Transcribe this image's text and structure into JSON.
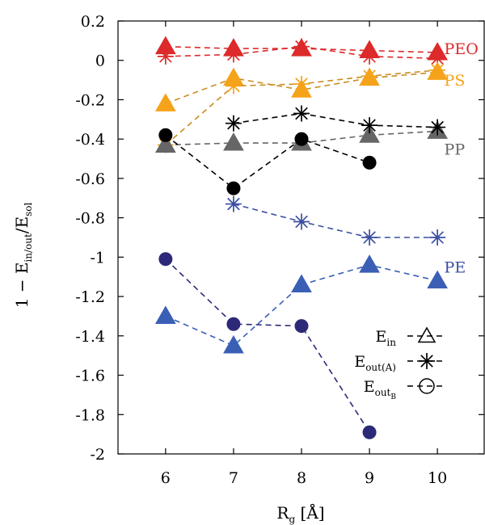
{
  "chart_data": {
    "type": "line",
    "xlabel": "R_g [Å]",
    "xlabel_main": "R",
    "xlabel_sub": "g",
    "xlabel_unit": " [Å]",
    "ylabel": "1 − E_in/out/E_sol",
    "ylabel_parts": {
      "lead": "1 − E",
      "sub1": "in/out",
      "mid": "/E",
      "sub2": "sol"
    },
    "xlim": [
      5.3,
      10.7
    ],
    "ylim": [
      -2.0,
      0.2
    ],
    "xticks": [
      6,
      7,
      8,
      9,
      10
    ],
    "yticks": [
      0.2,
      0,
      -0.2,
      -0.4,
      -0.6,
      -0.8,
      -1,
      -1.2,
      -1.4,
      -1.6,
      -1.8,
      -2
    ],
    "ytick_labels": [
      "0.2",
      "0",
      "-0.2",
      "-0.4",
      "-0.6",
      "-0.8",
      "-1",
      "-1.2",
      "-1.4",
      "-1.6",
      "-1.8",
      "-2"
    ],
    "grid": false,
    "legend_position": "bottom-right",
    "legend": [
      {
        "marker": "triangle",
        "main": "E",
        "sub": "in",
        "subsub": ""
      },
      {
        "marker": "asterisk",
        "main": "E",
        "sub": "out(A)",
        "subsub": ""
      },
      {
        "marker": "circle",
        "main": "E",
        "sub": "out",
        "subsub": "B"
      }
    ],
    "groups": [
      {
        "label": "PEO",
        "color": "#dd2a2a",
        "series": [
          {
            "marker": "triangle",
            "x": [
              6,
              7,
              8,
              9,
              10
            ],
            "y": [
              0.07,
              0.06,
              0.06,
              0.05,
              0.04
            ]
          },
          {
            "marker": "asterisk",
            "x": [
              6,
              7,
              8,
              9,
              10
            ],
            "y": [
              0.02,
              0.03,
              0.07,
              0.02,
              0.01
            ]
          }
        ]
      },
      {
        "label": "PS",
        "color": "#f5a31a",
        "line_color": "#c98e22",
        "series": [
          {
            "marker": "triangle",
            "x": [
              6,
              7,
              8,
              9,
              10
            ],
            "y": [
              -0.22,
              -0.09,
              -0.15,
              -0.09,
              -0.06
            ]
          },
          {
            "marker": "asterisk",
            "x": [
              6,
              7,
              8,
              9,
              10
            ],
            "y": [
              -0.43,
              -0.13,
              -0.12,
              -0.08,
              -0.05
            ]
          }
        ]
      },
      {
        "label": "PP",
        "color": "#000000",
        "label_color": "#666666",
        "series": [
          {
            "marker": "triangle",
            "color": "#666666",
            "x": [
              6,
              7,
              8,
              9,
              10
            ],
            "y": [
              -0.43,
              -0.42,
              -0.42,
              -0.38,
              -0.36
            ]
          },
          {
            "marker": "asterisk",
            "x": [
              7,
              8,
              9,
              10
            ],
            "y": [
              -0.32,
              -0.27,
              -0.33,
              -0.34
            ]
          },
          {
            "marker": "circle",
            "x": [
              6,
              7,
              8,
              9
            ],
            "y": [
              -0.38,
              -0.65,
              -0.4,
              -0.52
            ]
          }
        ]
      },
      {
        "label": "PE",
        "color": "#2e4a9e",
        "series": [
          {
            "marker": "asterisk",
            "color": "#3a4ea0",
            "x": [
              7,
              8,
              9,
              10
            ],
            "y": [
              -0.73,
              -0.82,
              -0.9,
              -0.9
            ]
          },
          {
            "marker": "triangle",
            "color": "#3a5fb5",
            "x": [
              6,
              7,
              8,
              9,
              10
            ],
            "y": [
              -1.3,
              -1.45,
              -1.14,
              -1.04,
              -1.12
            ]
          },
          {
            "marker": "circle",
            "color": "#2c2a78",
            "x": [
              6,
              7,
              8,
              9
            ],
            "y": [
              -1.01,
              -1.34,
              -1.35,
              -1.89
            ]
          }
        ]
      }
    ],
    "series_labels": [
      {
        "text": "PEO",
        "color": "#dd2a2a",
        "x": 10.1,
        "y": 0.06
      },
      {
        "text": "PS",
        "color": "#f5a31a",
        "x": 10.1,
        "y": -0.1
      },
      {
        "text": "PP",
        "color": "#666666",
        "x": 10.1,
        "y": -0.45
      },
      {
        "text": "PE",
        "color": "#3a4ea0",
        "x": 10.1,
        "y": -1.05
      }
    ]
  }
}
